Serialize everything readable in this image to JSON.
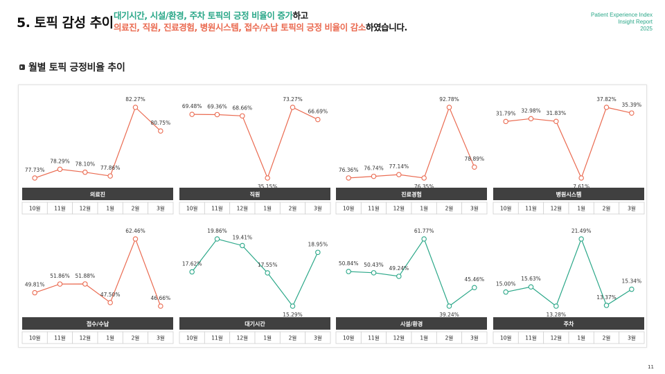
{
  "header": {
    "title": "5. 토픽 감성 추이",
    "line1_highlight": "대기시간, 시설/환경, 주차 토픽의 긍정 비율이 증가",
    "line1_rest": "하고",
    "line2_highlight": "의료진, 직원, 진료경험, 병원시스템, 접수/수납 토픽의 긍정 비율이 감소",
    "line2_rest": "하였습니다.",
    "brand_line1": "Patient Experience Index",
    "brand_line2": "Insight Report",
    "brand_line3": "2025"
  },
  "section": {
    "title": "월별 토픽 긍정비율 추이"
  },
  "page_number": "11",
  "colors": {
    "decrease": "#ea6a50",
    "increase": "#2aa788",
    "bar": "#404040"
  },
  "chart_data": [
    {
      "type": "line",
      "name": "의료진",
      "trend": "decrease",
      "categories": [
        "10월",
        "11월",
        "12월",
        "1월",
        "2월",
        "3월"
      ],
      "values": [
        77.73,
        78.29,
        78.1,
        77.86,
        82.27,
        80.75
      ],
      "labels": [
        "77.73%",
        "78.29%",
        "78.10%",
        "77.86%",
        "82.27%",
        "80.75%"
      ]
    },
    {
      "type": "line",
      "name": "직원",
      "trend": "decrease",
      "categories": [
        "10월",
        "11월",
        "12월",
        "1월",
        "2월",
        "3월"
      ],
      "values": [
        69.48,
        69.36,
        68.66,
        35.15,
        73.27,
        66.69
      ],
      "labels": [
        "69.48%",
        "69.36%",
        "68.66%",
        "35.15%",
        "73.27%",
        "66.69%"
      ]
    },
    {
      "type": "line",
      "name": "진료경험",
      "trend": "decrease",
      "categories": [
        "10월",
        "11월",
        "12월",
        "1월",
        "2월",
        "3월"
      ],
      "values": [
        76.36,
        76.74,
        77.14,
        76.35,
        92.78,
        78.89
      ],
      "labels": [
        "76.36%",
        "76.74%",
        "77.14%",
        "76.35%",
        "92.78%",
        "78.89%"
      ]
    },
    {
      "type": "line",
      "name": "병원시스템",
      "trend": "decrease",
      "categories": [
        "10월",
        "11월",
        "12월",
        "1월",
        "2월",
        "3월"
      ],
      "values": [
        31.79,
        32.98,
        31.83,
        7.61,
        37.82,
        35.39
      ],
      "labels": [
        "31.79%",
        "32.98%",
        "31.83%",
        "7.61%",
        "37.82%",
        "35.39%"
      ]
    },
    {
      "type": "line",
      "name": "접수/수납",
      "trend": "decrease",
      "categories": [
        "10월",
        "11월",
        "12월",
        "1월",
        "2월",
        "3월"
      ],
      "values": [
        49.81,
        51.86,
        51.88,
        47.5,
        62.46,
        46.66
      ],
      "labels": [
        "49.81%",
        "51.86%",
        "51.88%",
        "47.50%",
        "62.46%",
        "46.66%"
      ]
    },
    {
      "type": "line",
      "name": "대기시간",
      "trend": "increase",
      "categories": [
        "10월",
        "11월",
        "12월",
        "1월",
        "2월",
        "3월"
      ],
      "values": [
        17.62,
        19.86,
        19.41,
        17.55,
        15.29,
        18.95
      ],
      "labels": [
        "17.62%",
        "19.86%",
        "19.41%",
        "17.55%",
        "15.29%",
        "18.95%"
      ]
    },
    {
      "type": "line",
      "name": "시설/환경",
      "trend": "increase",
      "categories": [
        "10월",
        "11월",
        "12월",
        "1월",
        "2월",
        "3월"
      ],
      "values": [
        50.84,
        50.43,
        49.24,
        61.77,
        39.24,
        45.46
      ],
      "labels": [
        "50.84%",
        "50.43%",
        "49.24%",
        "61.77%",
        "39.24%",
        "45.46%"
      ]
    },
    {
      "type": "line",
      "name": "주차",
      "trend": "increase",
      "categories": [
        "10월",
        "11월",
        "12월",
        "1월",
        "2월",
        "3월"
      ],
      "values": [
        15.0,
        15.63,
        13.28,
        21.49,
        13.37,
        15.34
      ],
      "labels": [
        "15.00%",
        "15.63%",
        "13.28%",
        "21.49%",
        "13.37%",
        "15.34%"
      ]
    }
  ]
}
